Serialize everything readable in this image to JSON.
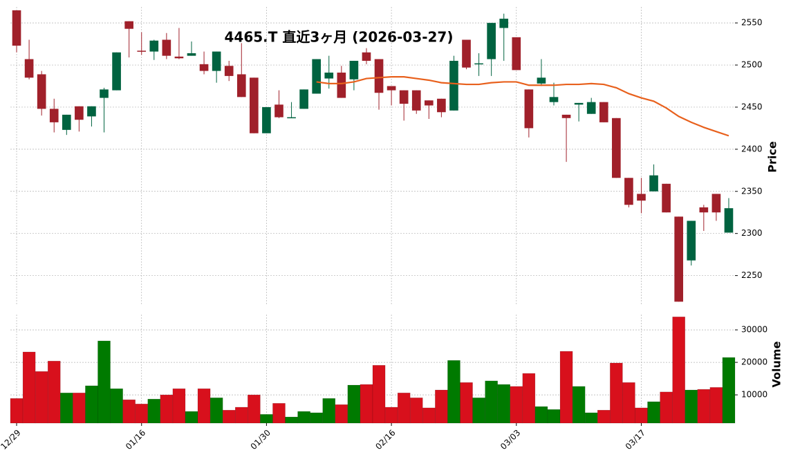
{
  "chart_data": {
    "type": "candlestick",
    "title": "4465.T  直近3ヶ月  (2026-03-27)",
    "ylabel": "Price",
    "categories": [
      "12/29",
      null,
      null,
      null,
      null,
      null,
      null,
      null,
      null,
      null,
      "01/16",
      null,
      null,
      null,
      null,
      null,
      null,
      null,
      null,
      null,
      "01/30",
      null,
      null,
      null,
      null,
      null,
      null,
      null,
      null,
      null,
      "02/16",
      null,
      null,
      null,
      null,
      null,
      null,
      null,
      null,
      null,
      "03/03",
      null,
      null,
      null,
      null,
      null,
      null,
      null,
      null,
      null,
      "03/17",
      null,
      null,
      null,
      null,
      null,
      null,
      null
    ],
    "open": [
      2565,
      2507,
      2489,
      2448,
      2423,
      2451,
      2439,
      2461,
      2470,
      2552,
      2517,
      2516,
      2530,
      2510,
      2511,
      2501,
      2493,
      2499,
      2489,
      2485,
      2419,
      2453,
      2437,
      2448,
      2466,
      2484,
      2491,
      2483,
      2515,
      2507,
      2475,
      2470,
      2470,
      2458,
      2460,
      2446,
      2530,
      2501,
      2507,
      2544,
      2533,
      2471,
      2478,
      2456,
      2441,
      2453,
      2442,
      2456,
      2437,
      2366,
      2347,
      2350,
      2359,
      2320,
      2268,
      2331,
      2347,
      2301
    ],
    "high": [
      2565,
      2530,
      2493,
      2460,
      2441,
      2451,
      2451,
      2473,
      2515,
      2552,
      2539,
      2530,
      2538,
      2544,
      2528,
      2516,
      2516,
      2505,
      2526,
      2485,
      2450,
      2470,
      2456,
      2471,
      2507,
      2511,
      2499,
      2505,
      2520,
      2507,
      2475,
      2470,
      2470,
      2458,
      2460,
      2511,
      2530,
      2514,
      2550,
      2561,
      2533,
      2471,
      2507,
      2479,
      2441,
      2455,
      2461,
      2456,
      2437,
      2366,
      2366,
      2382,
      2359,
      2320,
      2315,
      2334,
      2347,
      2342
    ],
    "low": [
      2515,
      2483,
      2440,
      2420,
      2417,
      2421,
      2427,
      2420,
      2470,
      2509,
      2512,
      2506,
      2507,
      2507,
      2511,
      2489,
      2479,
      2481,
      2462,
      2419,
      2419,
      2437,
      2437,
      2448,
      2466,
      2472,
      2461,
      2470,
      2501,
      2447,
      2452,
      2434,
      2442,
      2436,
      2438,
      2446,
      2495,
      2487,
      2487,
      2505,
      2494,
      2414,
      2475,
      2452,
      2385,
      2433,
      2442,
      2432,
      2366,
      2331,
      2324,
      2350,
      2325,
      2219,
      2262,
      2303,
      2315,
      2301
    ],
    "close": [
      2523,
      2485,
      2448,
      2432,
      2441,
      2435,
      2451,
      2471,
      2515,
      2543,
      2516,
      2529,
      2511,
      2508,
      2514,
      2493,
      2516,
      2487,
      2462,
      2419,
      2450,
      2438,
      2438,
      2471,
      2507,
      2491,
      2461,
      2505,
      2505,
      2467,
      2470,
      2454,
      2446,
      2452,
      2444,
      2505,
      2497,
      2502,
      2550,
      2555,
      2494,
      2425,
      2485,
      2462,
      2437,
      2455,
      2456,
      2432,
      2366,
      2334,
      2339,
      2369,
      2325,
      2219,
      2315,
      2325,
      2325,
      2330
    ],
    "up_color": "#006340",
    "down_color": "#a0202a",
    "ma": {
      "color": "#e8601c",
      "values": [
        null,
        null,
        null,
        null,
        null,
        null,
        null,
        null,
        null,
        null,
        null,
        null,
        null,
        null,
        null,
        null,
        null,
        null,
        null,
        null,
        null,
        null,
        null,
        null,
        2480,
        2478,
        2478,
        2480,
        2484,
        2485,
        2486,
        2486,
        2484,
        2482,
        2479,
        2478,
        2477,
        2477,
        2479,
        2480,
        2480,
        2476,
        2476,
        2476,
        2477,
        2477,
        2478,
        2477,
        2473,
        2466,
        2461,
        2457,
        2449,
        2439,
        2432,
        2426,
        2421,
        2416
      ]
    },
    "ylim": [
      2216,
      2569
    ],
    "yticks": [
      2250,
      2300,
      2350,
      2400,
      2450,
      2500,
      2550
    ],
    "grid": true,
    "volume": {
      "ylabel": "Volume",
      "up_color": "#007a00",
      "down_color": "#d8101c",
      "values": [
        8900,
        23200,
        17200,
        20400,
        10600,
        10600,
        12800,
        26600,
        11900,
        8500,
        7200,
        8700,
        10000,
        11900,
        4900,
        11900,
        9100,
        5300,
        6200,
        10000,
        4000,
        7400,
        3200,
        4900,
        4500,
        8900,
        7000,
        13000,
        13200,
        19100,
        6200,
        10600,
        9100,
        6000,
        11500,
        20600,
        13800,
        9100,
        14300,
        13200,
        12600,
        16600,
        6400,
        5500,
        23400,
        12600,
        4500,
        5300,
        19800,
        13800,
        6000,
        7900,
        10900,
        34000,
        11500,
        11700,
        12300,
        21500
      ],
      "ylim": [
        1300,
        34700
      ],
      "yticks": [
        10000,
        20000,
        30000
      ]
    }
  }
}
